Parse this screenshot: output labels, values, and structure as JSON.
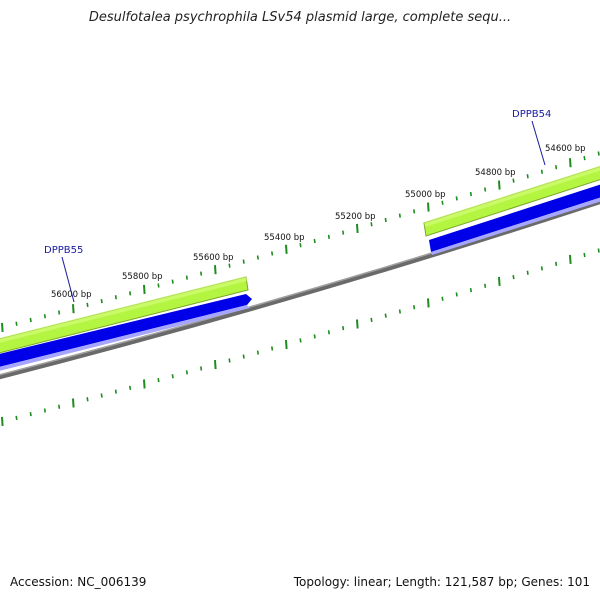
{
  "title": "Desulfotalea psychrophila LSv54 plasmid large, complete sequ...",
  "footer": {
    "accession": "Accession: NC_006139",
    "summary": "Topology: linear; Length: 121,587 bp; Genes: 101"
  },
  "genes": [
    {
      "name": "DPPB55",
      "label_x": 44,
      "label_y": 253
    },
    {
      "name": "DPPB54",
      "label_x": 512,
      "label_y": 117
    }
  ],
  "ticks": [
    {
      "text": "56000 bp"
    },
    {
      "text": "55800 bp"
    },
    {
      "text": "55600 bp"
    },
    {
      "text": "55400 bp"
    },
    {
      "text": "55200 bp"
    },
    {
      "text": "55000 bp"
    },
    {
      "text": "54800 bp"
    },
    {
      "text": "54600 bp"
    }
  ],
  "colors": {
    "gene_green": "#aef03a",
    "gene_green_edge": "#6a9a20",
    "gene_blue": "#0000ee",
    "backbone": "#808080",
    "tick": "#1a8a1a",
    "label": "#1a1aa0"
  }
}
